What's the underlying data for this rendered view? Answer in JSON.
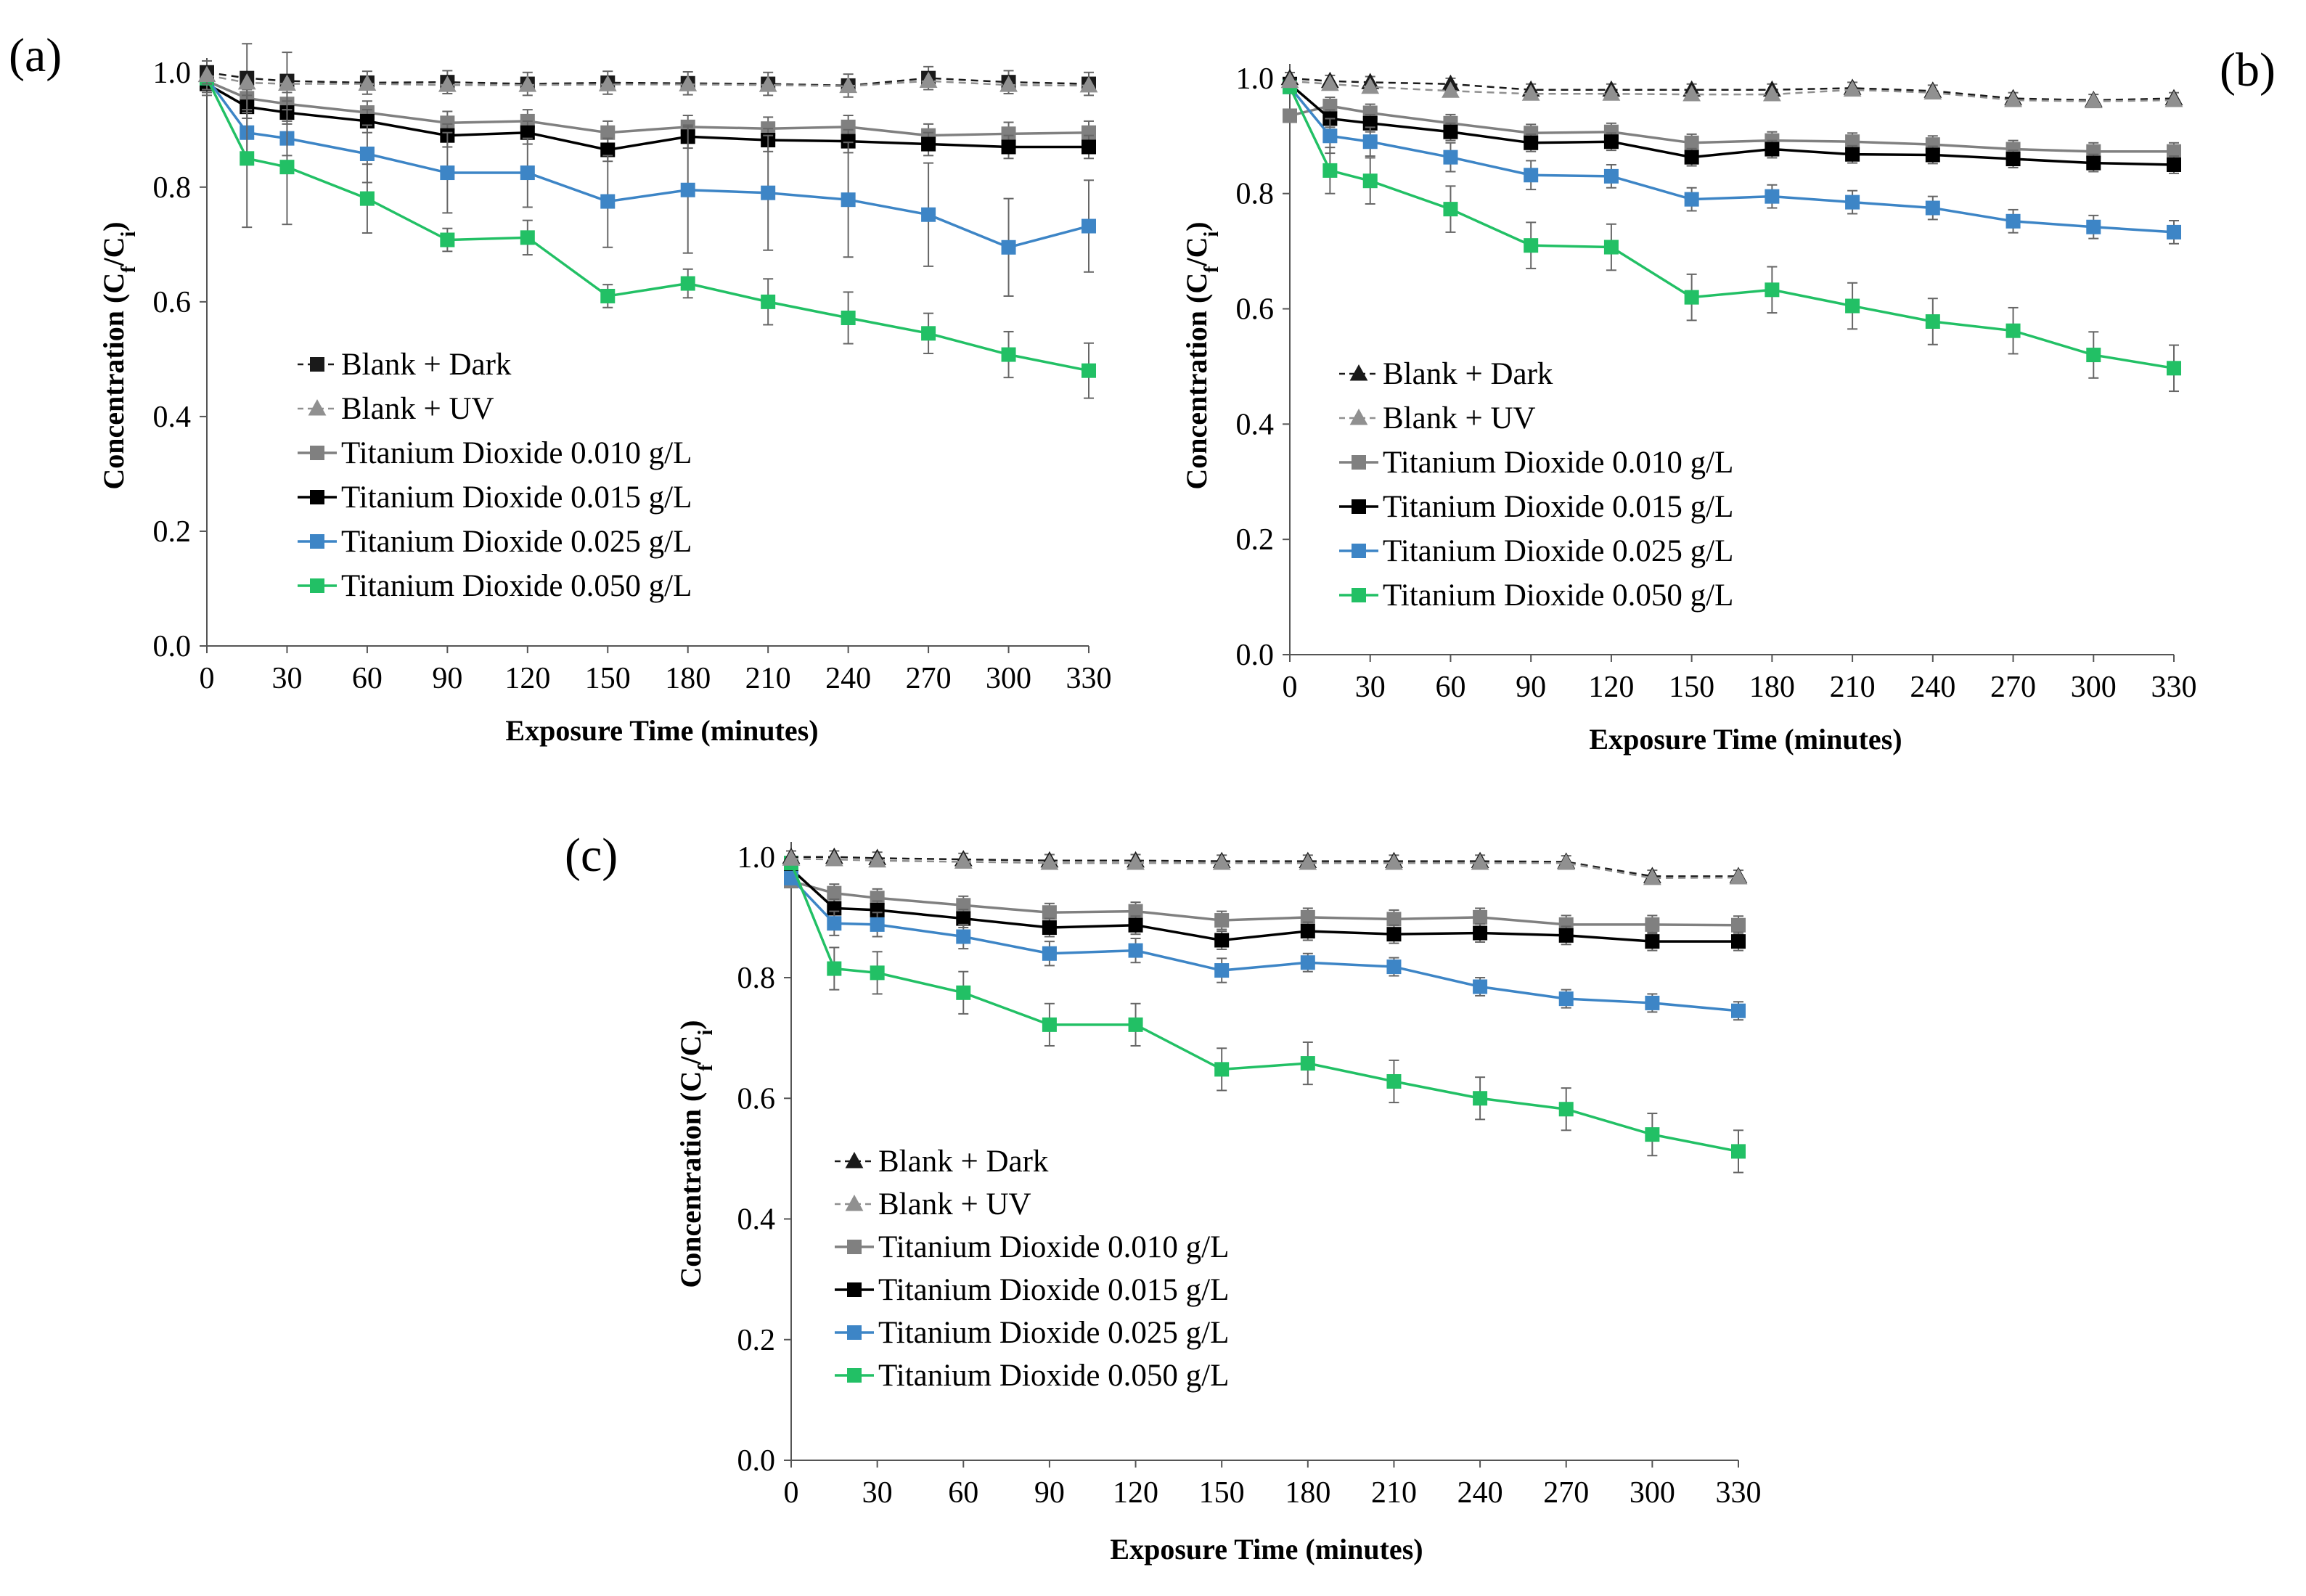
{
  "figure": {
    "panels": [
      {
        "label": "(a)",
        "xlabel": "Exposure Time (minutes)",
        "ylabel_main": "Concentration (C",
        "ylabel_sub1": "f",
        "ylabel_mid": "/C",
        "ylabel_sub2": "i",
        "ylabel_end": ")"
      },
      {
        "label": "(b)",
        "xlabel": "Exposure Time (minutes)",
        "ylabel_main": "Concentration (C",
        "ylabel_sub1": "f",
        "ylabel_mid": "/C",
        "ylabel_sub2": "i",
        "ylabel_end": ")"
      },
      {
        "label": "(c)",
        "xlabel": "Exposure Time (minutes)",
        "ylabel_main": "Concentration (C",
        "ylabel_sub1": "f",
        "ylabel_mid": "/C",
        "ylabel_sub2": "i",
        "ylabel_end": ")"
      }
    ]
  },
  "chart_data": [
    {
      "type": "line",
      "panel": "(a)",
      "xlabel": "Exposure Time (minutes)",
      "ylabel": "Concentration (Cf/Ci)",
      "xlim": [
        0,
        330
      ],
      "ylim": [
        0,
        1.0
      ],
      "x_ticks": [
        0,
        30,
        60,
        90,
        120,
        150,
        180,
        210,
        240,
        270,
        300,
        330
      ],
      "y_ticks": [
        0.0,
        0.2,
        0.4,
        0.6,
        0.8,
        1.0
      ],
      "y_tick_labels": [
        "0.0",
        "0.2",
        "0.4",
        "0.6",
        "0.8",
        "1.0"
      ],
      "legend_position": "lower-left",
      "x": [
        0,
        15,
        30,
        60,
        90,
        120,
        150,
        180,
        210,
        240,
        270,
        300,
        330
      ],
      "series": [
        {
          "name": "Blank + Dark",
          "color": "#1a1a1a",
          "marker": "square",
          "dashed": true,
          "values": [
            1.0,
            0.99,
            0.985,
            0.982,
            0.983,
            0.98,
            0.982,
            0.981,
            0.98,
            0.977,
            0.99,
            0.983,
            0.98
          ],
          "errors": [
            0.02,
            0.06,
            0.05,
            0.02,
            0.02,
            0.02,
            0.02,
            0.02,
            0.02,
            0.02,
            0.02,
            0.02,
            0.02
          ]
        },
        {
          "name": "Blank + UV",
          "color": "#909090",
          "marker": "triangle",
          "dashed": true,
          "values": [
            0.995,
            0.982,
            0.98,
            0.98,
            0.978,
            0.978,
            0.979,
            0.979,
            0.978,
            0.976,
            0.985,
            0.978,
            0.977
          ],
          "errors": [
            0,
            0,
            0,
            0,
            0,
            0,
            0,
            0,
            0,
            0,
            0,
            0,
            0
          ]
        },
        {
          "name": "Titanium Dioxide 0.010 g/L",
          "color": "#808080",
          "marker": "square",
          "dashed": false,
          "values": [
            0.985,
            0.955,
            0.945,
            0.93,
            0.912,
            0.915,
            0.895,
            0.905,
            0.902,
            0.905,
            0.89,
            0.893,
            0.895
          ],
          "errors": [
            0.02,
            0.02,
            0.02,
            0.02,
            0.02,
            0.02,
            0.02,
            0.02,
            0.02,
            0.02,
            0.02,
            0.02,
            0.02
          ]
        },
        {
          "name": "Titanium Dioxide 0.015 g/L",
          "color": "#000000",
          "marker": "square",
          "dashed": false,
          "values": [
            0.98,
            0.94,
            0.93,
            0.915,
            0.89,
            0.895,
            0.865,
            0.888,
            0.882,
            0.88,
            0.875,
            0.87,
            0.87
          ],
          "errors": [
            0.02,
            0.02,
            0.02,
            0.02,
            0.02,
            0.02,
            0.02,
            0.02,
            0.02,
            0.02,
            0.02,
            0.02,
            0.02
          ]
        },
        {
          "name": "Titanium Dioxide 0.025 g/L",
          "color": "#3d85c6",
          "marker": "square",
          "dashed": false,
          "values": [
            0.99,
            0.895,
            0.885,
            0.858,
            0.825,
            0.825,
            0.775,
            0.795,
            0.79,
            0.778,
            0.752,
            0.695,
            0.732
          ],
          "errors": [
            0.02,
            0.04,
            0.03,
            0.05,
            0.07,
            0.06,
            0.08,
            0.11,
            0.1,
            0.1,
            0.09,
            0.085,
            0.08
          ]
        },
        {
          "name": "Titanium Dioxide 0.050 g/L",
          "color": "#22c065",
          "marker": "square",
          "dashed": false,
          "values": [
            0.99,
            0.85,
            0.835,
            0.78,
            0.708,
            0.712,
            0.61,
            0.632,
            0.6,
            0.572,
            0.545,
            0.508,
            0.48
          ],
          "errors": [
            0.02,
            0.12,
            0.1,
            0.06,
            0.02,
            0.03,
            0.02,
            0.025,
            0.04,
            0.045,
            0.035,
            0.04,
            0.048
          ]
        }
      ]
    },
    {
      "type": "line",
      "panel": "(b)",
      "xlabel": "Exposure Time (minutes)",
      "ylabel": "Concentration (Cf/Ci)",
      "xlim": [
        0,
        330
      ],
      "ylim": [
        0,
        1.0
      ],
      "x_ticks": [
        0,
        30,
        60,
        90,
        120,
        150,
        180,
        210,
        240,
        270,
        300,
        330
      ],
      "y_ticks": [
        0.0,
        0.2,
        0.4,
        0.6,
        0.8,
        1.0
      ],
      "y_tick_labels": [
        "0.0",
        "0.2",
        "0.4",
        "0.6",
        "0.8",
        "1.0"
      ],
      "legend_position": "lower-left",
      "x": [
        0,
        15,
        30,
        60,
        90,
        120,
        150,
        180,
        210,
        240,
        270,
        300,
        330
      ],
      "series": [
        {
          "name": "Blank + Dark",
          "color": "#1a1a1a",
          "marker": "triangle",
          "dashed": true,
          "values": [
            1.0,
            0.995,
            0.993,
            0.99,
            0.98,
            0.98,
            0.98,
            0.98,
            0.983,
            0.978,
            0.965,
            0.962,
            0.965
          ],
          "errors": [
            0.01,
            0.01,
            0.01,
            0.01,
            0.01,
            0.01,
            0.01,
            0.01,
            0.01,
            0.01,
            0.01,
            0.01,
            0.01
          ]
        },
        {
          "name": "Blank + UV",
          "color": "#909090",
          "marker": "triangle",
          "dashed": true,
          "values": [
            0.995,
            0.99,
            0.985,
            0.978,
            0.973,
            0.973,
            0.972,
            0.972,
            0.98,
            0.975,
            0.962,
            0.96,
            0.962
          ],
          "errors": [
            0,
            0,
            0,
            0,
            0,
            0,
            0,
            0,
            0,
            0,
            0,
            0,
            0
          ]
        },
        {
          "name": "Titanium Dioxide 0.010 g/L",
          "color": "#808080",
          "marker": "square",
          "dashed": false,
          "values": [
            0.935,
            0.952,
            0.94,
            0.922,
            0.905,
            0.907,
            0.888,
            0.892,
            0.89,
            0.885,
            0.877,
            0.873,
            0.873
          ],
          "errors": [
            0.01,
            0.015,
            0.015,
            0.015,
            0.015,
            0.015,
            0.015,
            0.015,
            0.015,
            0.015,
            0.015,
            0.015,
            0.015
          ]
        },
        {
          "name": "Titanium Dioxide 0.015 g/L",
          "color": "#000000",
          "marker": "square",
          "dashed": false,
          "values": [
            0.99,
            0.93,
            0.922,
            0.907,
            0.888,
            0.89,
            0.863,
            0.877,
            0.868,
            0.867,
            0.86,
            0.853,
            0.85
          ],
          "errors": [
            0.01,
            0.015,
            0.015,
            0.015,
            0.015,
            0.015,
            0.015,
            0.015,
            0.015,
            0.015,
            0.015,
            0.015,
            0.015
          ]
        },
        {
          "name": "Titanium Dioxide 0.025 g/L",
          "color": "#3d85c6",
          "marker": "square",
          "dashed": false,
          "values": [
            0.985,
            0.9,
            0.89,
            0.863,
            0.832,
            0.83,
            0.79,
            0.795,
            0.785,
            0.775,
            0.752,
            0.742,
            0.733
          ],
          "errors": [
            0.01,
            0.03,
            0.025,
            0.025,
            0.025,
            0.02,
            0.02,
            0.02,
            0.02,
            0.02,
            0.02,
            0.02,
            0.02
          ]
        },
        {
          "name": "Titanium Dioxide 0.050 g/L",
          "color": "#22c065",
          "marker": "square",
          "dashed": false,
          "values": [
            0.985,
            0.84,
            0.822,
            0.773,
            0.71,
            0.707,
            0.62,
            0.633,
            0.605,
            0.578,
            0.562,
            0.52,
            0.497
          ],
          "errors": [
            0.01,
            0.04,
            0.04,
            0.04,
            0.04,
            0.04,
            0.04,
            0.04,
            0.04,
            0.04,
            0.04,
            0.04,
            0.04
          ]
        }
      ]
    },
    {
      "type": "line",
      "panel": "(c)",
      "xlabel": "Exposure Time (minutes)",
      "ylabel": "Concentration (Cf/Ci)",
      "xlim": [
        0,
        330
      ],
      "ylim": [
        0,
        1.0
      ],
      "x_ticks": [
        0,
        30,
        60,
        90,
        120,
        150,
        180,
        210,
        240,
        270,
        300,
        330
      ],
      "y_ticks": [
        0.0,
        0.2,
        0.4,
        0.6,
        0.8,
        1.0
      ],
      "y_tick_labels": [
        "0.0",
        "0.2",
        "0.4",
        "0.6",
        "0.8",
        "1.0"
      ],
      "legend_position": "lower-left",
      "x": [
        0,
        15,
        30,
        60,
        90,
        120,
        150,
        180,
        210,
        240,
        270,
        300,
        330
      ],
      "series": [
        {
          "name": "Blank + Dark",
          "color": "#1a1a1a",
          "marker": "triangle",
          "dashed": true,
          "values": [
            1.0,
            1.0,
            0.998,
            0.996,
            0.994,
            0.994,
            0.993,
            0.993,
            0.993,
            0.993,
            0.992,
            0.968,
            0.968
          ],
          "errors": [
            0.01,
            0.01,
            0.01,
            0.01,
            0.01,
            0.01,
            0.01,
            0.01,
            0.01,
            0.01,
            0.01,
            0.01,
            0.01
          ]
        },
        {
          "name": "Blank + UV",
          "color": "#909090",
          "marker": "triangle",
          "dashed": true,
          "values": [
            0.997,
            0.996,
            0.994,
            0.992,
            0.99,
            0.99,
            0.99,
            0.99,
            0.99,
            0.99,
            0.99,
            0.965,
            0.966
          ],
          "errors": [
            0,
            0,
            0,
            0,
            0,
            0,
            0,
            0,
            0,
            0,
            0,
            0,
            0
          ]
        },
        {
          "name": "Titanium Dioxide 0.010 g/L",
          "color": "#808080",
          "marker": "square",
          "dashed": false,
          "values": [
            0.96,
            0.94,
            0.932,
            0.92,
            0.908,
            0.91,
            0.895,
            0.9,
            0.897,
            0.9,
            0.888,
            0.888,
            0.887
          ],
          "errors": [
            0.01,
            0.015,
            0.015,
            0.015,
            0.015,
            0.015,
            0.015,
            0.015,
            0.015,
            0.015,
            0.015,
            0.015,
            0.015
          ]
        },
        {
          "name": "Titanium Dioxide 0.015 g/L",
          "color": "#000000",
          "marker": "square",
          "dashed": false,
          "values": [
            0.98,
            0.915,
            0.912,
            0.898,
            0.883,
            0.887,
            0.862,
            0.877,
            0.872,
            0.874,
            0.87,
            0.86,
            0.86
          ],
          "errors": [
            0.01,
            0.015,
            0.015,
            0.015,
            0.015,
            0.015,
            0.015,
            0.015,
            0.015,
            0.015,
            0.015,
            0.015,
            0.015
          ]
        },
        {
          "name": "Titanium Dioxide 0.025 g/L",
          "color": "#3d85c6",
          "marker": "square",
          "dashed": false,
          "values": [
            0.965,
            0.89,
            0.888,
            0.868,
            0.84,
            0.845,
            0.812,
            0.825,
            0.818,
            0.785,
            0.765,
            0.758,
            0.745
          ],
          "errors": [
            0.01,
            0.02,
            0.02,
            0.02,
            0.02,
            0.02,
            0.02,
            0.015,
            0.015,
            0.015,
            0.015,
            0.015,
            0.015
          ]
        },
        {
          "name": "Titanium Dioxide 0.050 g/L",
          "color": "#22c065",
          "marker": "square",
          "dashed": false,
          "values": [
            0.99,
            0.815,
            0.808,
            0.775,
            0.722,
            0.722,
            0.648,
            0.658,
            0.628,
            0.6,
            0.582,
            0.54,
            0.512
          ],
          "errors": [
            0.01,
            0.035,
            0.035,
            0.035,
            0.035,
            0.035,
            0.035,
            0.035,
            0.035,
            0.035,
            0.035,
            0.035,
            0.035
          ]
        }
      ]
    }
  ]
}
